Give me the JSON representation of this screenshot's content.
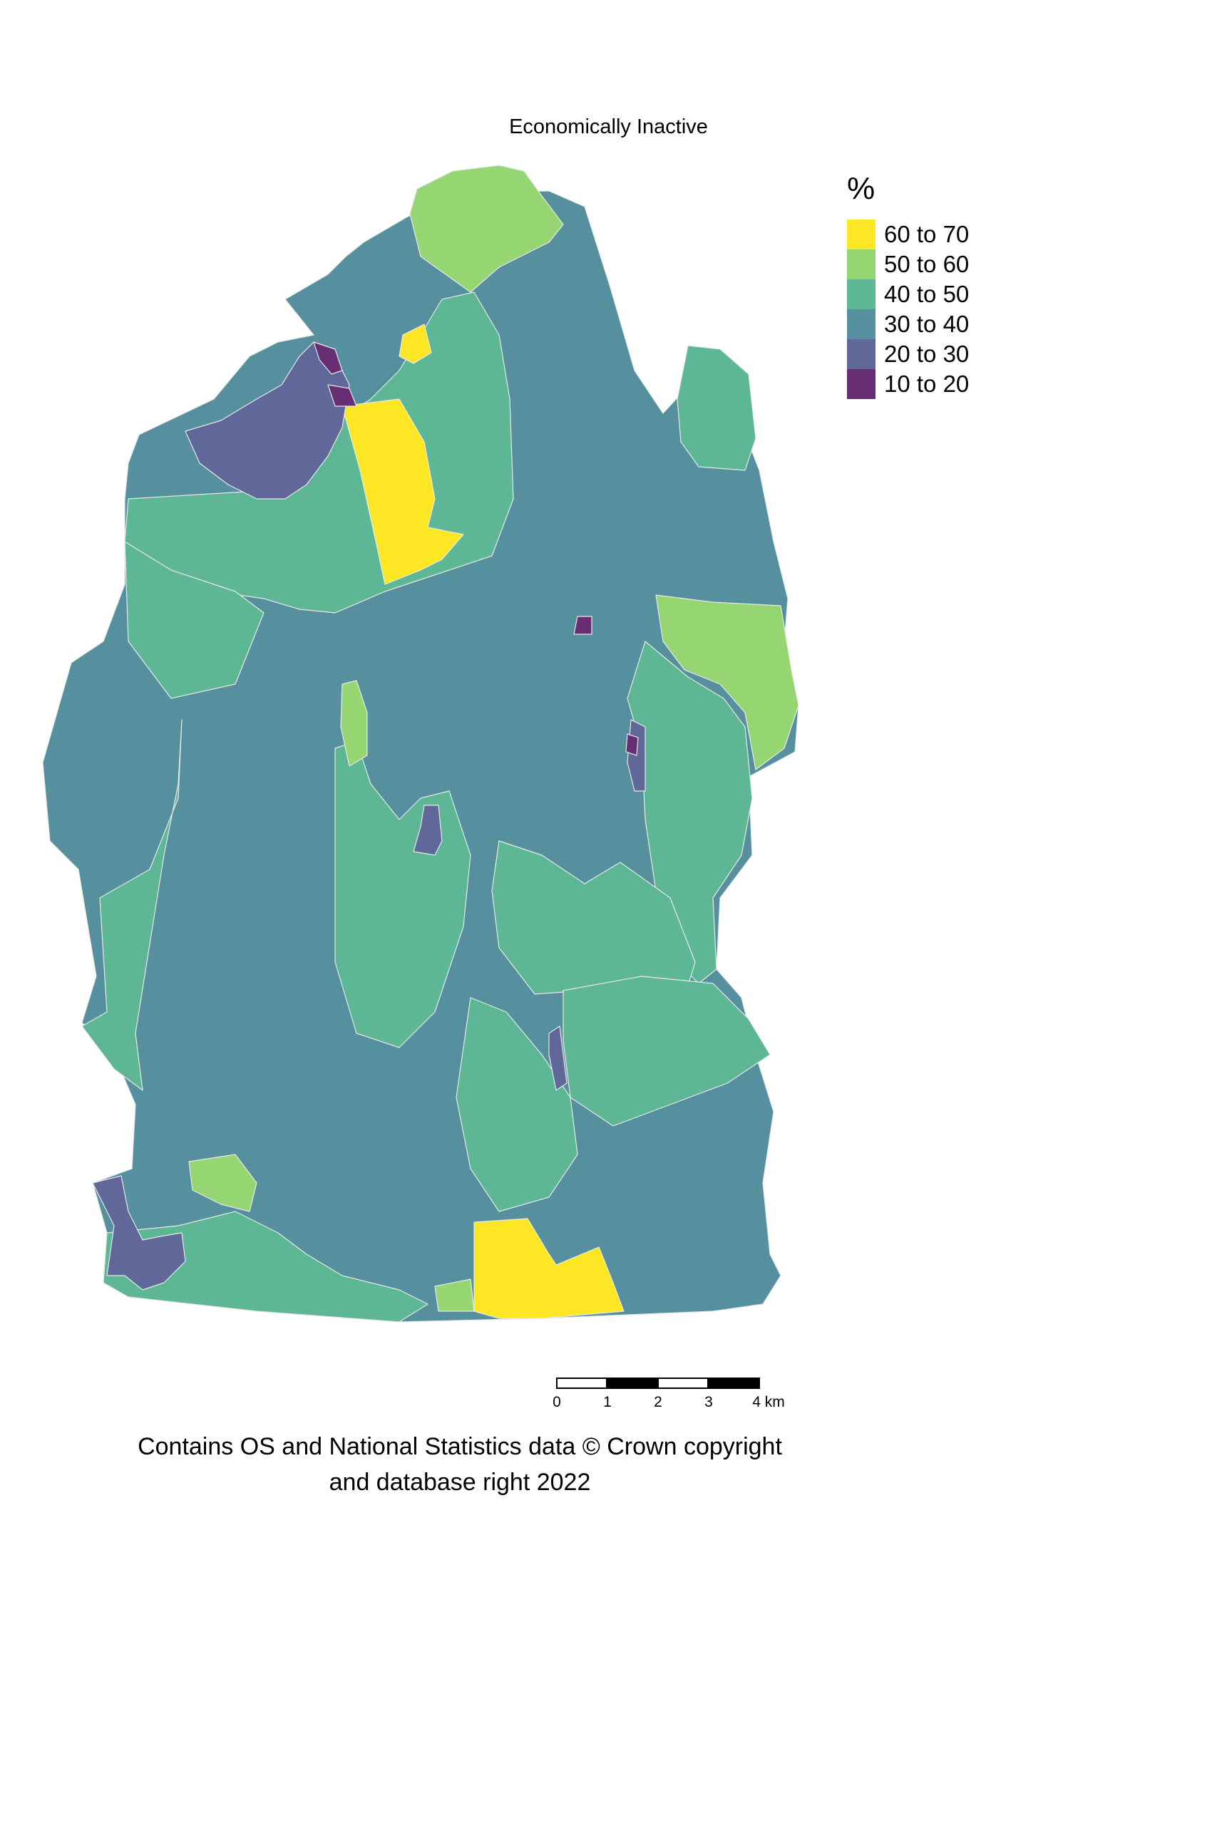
{
  "title": "Economically Inactive",
  "legend": {
    "title": "%",
    "items": [
      {
        "label": "60 to 70",
        "color": "#fde725"
      },
      {
        "label": "50 to 60",
        "color": "#95d672"
      },
      {
        "label": "40 to 50",
        "color": "#5db794"
      },
      {
        "label": "30 to 40",
        "color": "#568f9e"
      },
      {
        "label": "20 to 30",
        "color": "#5f6898"
      },
      {
        "label": "10 to 20",
        "color": "#672e73"
      }
    ]
  },
  "scalebar": {
    "ticks": [
      "0",
      "1",
      "2",
      "3",
      "4 km"
    ]
  },
  "attribution": {
    "line1": "Contains OS and National Statistics data © Crown copyright",
    "line2": "and database right 2022"
  }
}
